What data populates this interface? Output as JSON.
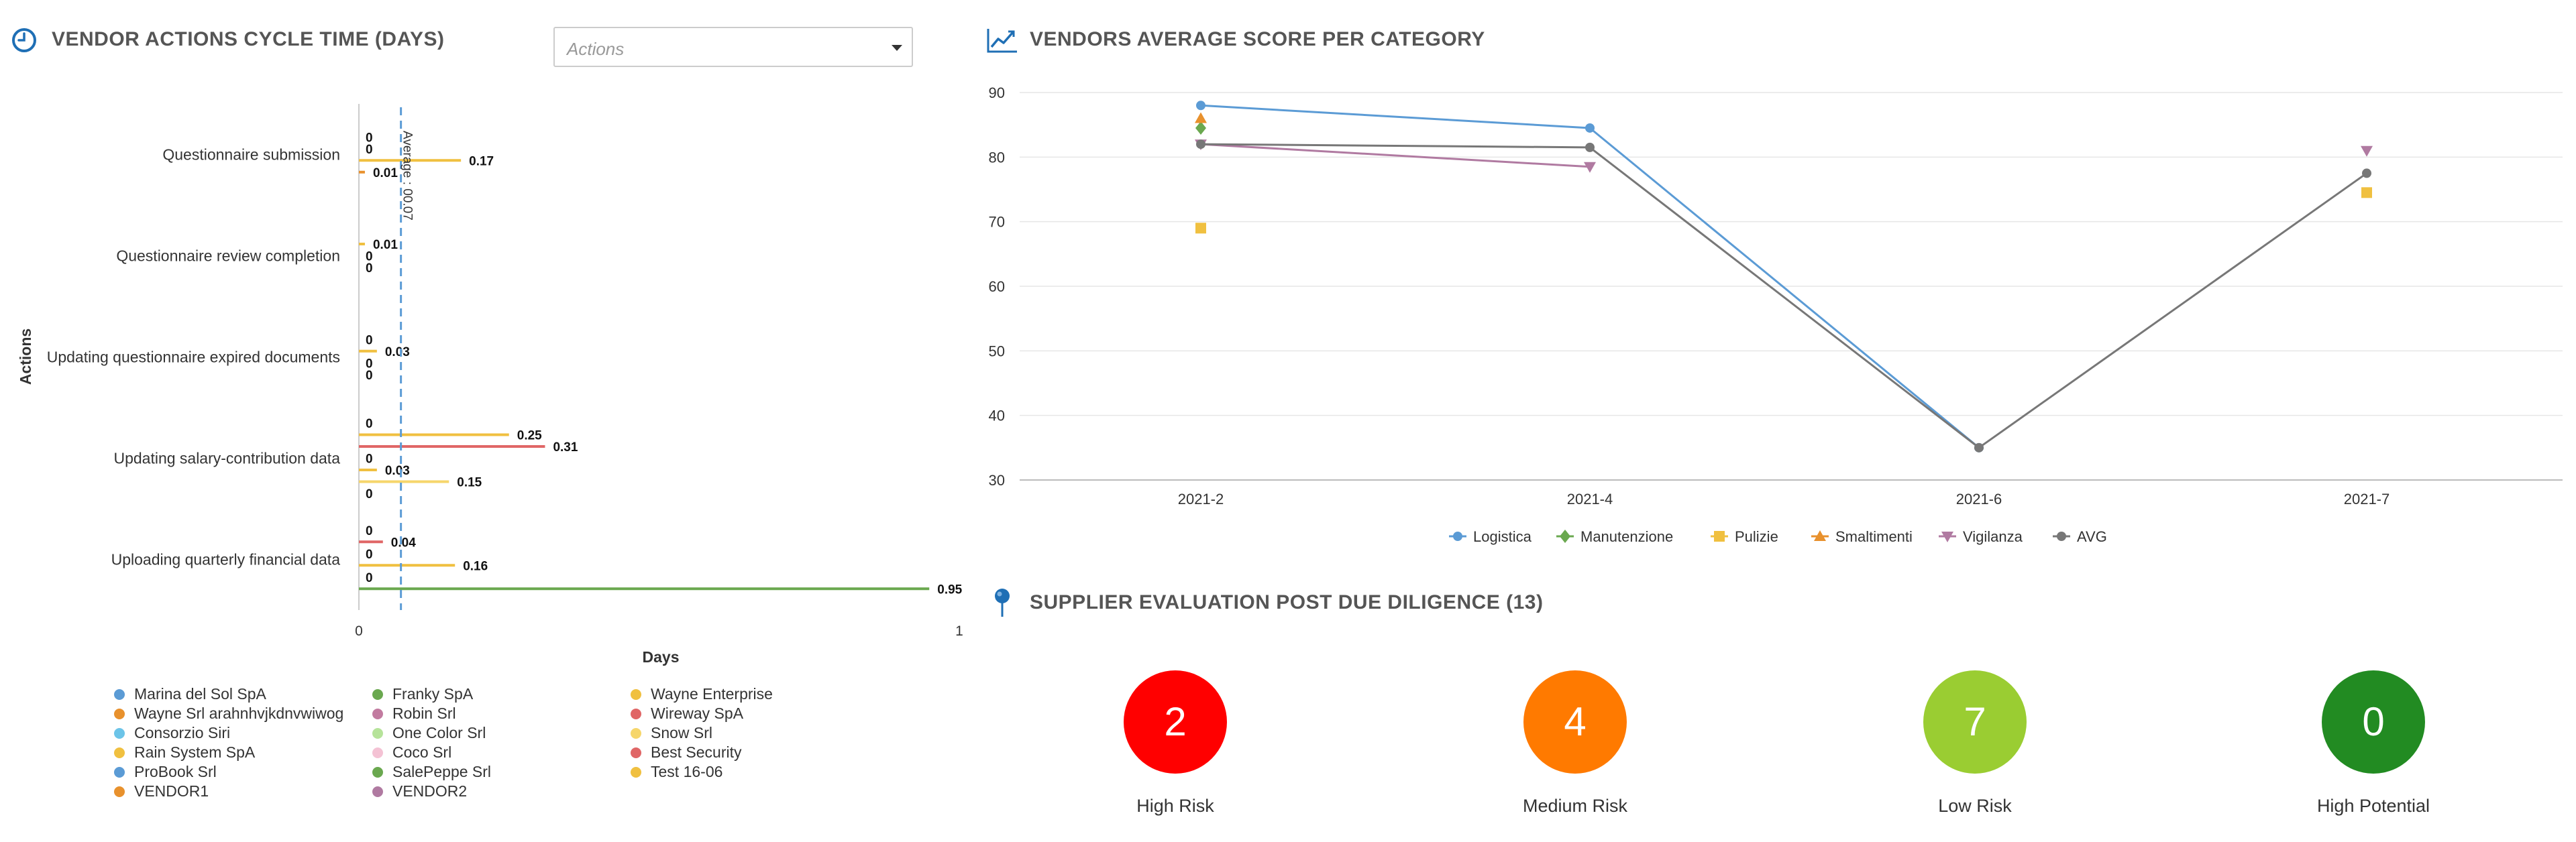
{
  "cycle_panel": {
    "title": "VENDOR ACTIONS CYCLE TIME (DAYS)",
    "dropdown_placeholder": "Actions",
    "y_axis_title": "Actions",
    "x_axis_title": "Days",
    "average_label": "Average : 00.07",
    "legend": [
      {
        "label": "Marina del Sol SpA",
        "color": "#5b9bd5"
      },
      {
        "label": "Wayne Srl arahnhvjkdnvwiwog",
        "color": "#e8912d"
      },
      {
        "label": "Consorzio Siri",
        "color": "#6cc4e8"
      },
      {
        "label": "Rain System SpA",
        "color": "#f0c040"
      },
      {
        "label": "ProBook Srl",
        "color": "#5b9bd5"
      },
      {
        "label": "VENDOR1",
        "color": "#e8912d"
      },
      {
        "label": "Franky SpA",
        "color": "#6aa84f"
      },
      {
        "label": "Robin Srl",
        "color": "#c27ba0"
      },
      {
        "label": "One Color Srl",
        "color": "#b6e39a"
      },
      {
        "label": "Coco Srl",
        "color": "#f4c2d4"
      },
      {
        "label": "SalePeppe Srl",
        "color": "#6aa84f"
      },
      {
        "label": "VENDOR2",
        "color": "#b07aa1"
      },
      {
        "label": "Wayne Enterprise",
        "color": "#f0c040"
      },
      {
        "label": "Wireway SpA",
        "color": "#e06666"
      },
      {
        "label": "Snow Srl",
        "color": "#f6d66b"
      },
      {
        "label": "Best Security",
        "color": "#e06666"
      },
      {
        "label": "Test 16-06",
        "color": "#f0c040"
      }
    ]
  },
  "score_panel": {
    "title": "VENDORS AVERAGE SCORE PER CATEGORY"
  },
  "evaluation_panel": {
    "title": "SUPPLIER EVALUATION POST DUE DILIGENCE (13)",
    "items": [
      {
        "count": "2",
        "label": "High Risk",
        "color": "#ff0000"
      },
      {
        "count": "4",
        "label": "Medium Risk",
        "color": "#ff7a00"
      },
      {
        "count": "7",
        "label": "Low Risk",
        "color": "#9acd32"
      },
      {
        "count": "0",
        "label": "High Potential",
        "color": "#228b22"
      }
    ]
  },
  "chart_data": [
    {
      "type": "bar",
      "orientation": "horizontal",
      "xlabel": "Days",
      "ylabel": "Actions",
      "xlim": [
        0,
        1
      ],
      "x_ticks": [
        "0",
        "1"
      ],
      "average": 0.07,
      "average_label": "Average : 00.07",
      "groups": [
        {
          "category": "Questionnaire submission",
          "bars": [
            {
              "value": 0,
              "label": "0",
              "color": "#5b9bd5"
            },
            {
              "value": 0,
              "label": "0",
              "color": "#e8912d"
            },
            {
              "value": 0.17,
              "label": "0.17",
              "color": "#f0c040"
            },
            {
              "value": 0.01,
              "label": "0.01",
              "color": "#e8912d"
            }
          ]
        },
        {
          "category": "Questionnaire review completion",
          "bars": [
            {
              "value": 0.01,
              "label": "0.01",
              "color": "#f0c040"
            },
            {
              "value": 0,
              "label": "0",
              "color": "#6cc4e8"
            },
            {
              "value": 0,
              "label": "0",
              "color": "#6aa84f"
            }
          ]
        },
        {
          "category": "Updating questionnaire expired documents",
          "bars": [
            {
              "value": 0,
              "label": "0",
              "color": "#f0c040"
            },
            {
              "value": 0.03,
              "label": "0.03",
              "color": "#f0c040"
            },
            {
              "value": 0,
              "label": "0",
              "color": "#5b9bd5"
            },
            {
              "value": 0,
              "label": "0",
              "color": "#6aa84f"
            }
          ]
        },
        {
          "category": "Updating salary-contribution data",
          "bars": [
            {
              "value": 0,
              "label": "0",
              "color": "#5b9bd5"
            },
            {
              "value": 0.25,
              "label": "0.25",
              "color": "#f0c040"
            },
            {
              "value": 0.31,
              "label": "0.31",
              "color": "#e06666"
            },
            {
              "value": 0,
              "label": "0",
              "color": "#5b9bd5"
            },
            {
              "value": 0.03,
              "label": "0.03",
              "color": "#f0c040"
            },
            {
              "value": 0.15,
              "label": "0.15",
              "color": "#f6d66b"
            },
            {
              "value": 0,
              "label": "0",
              "color": "#6aa84f"
            }
          ]
        },
        {
          "category": "Uploading quarterly financial data",
          "bars": [
            {
              "value": 0,
              "label": "0",
              "color": "#5b9bd5"
            },
            {
              "value": 0.04,
              "label": "0.04",
              "color": "#e06666"
            },
            {
              "value": 0,
              "label": "0",
              "color": "#b07aa1"
            },
            {
              "value": 0.16,
              "label": "0.16",
              "color": "#f0c040"
            },
            {
              "value": 0,
              "label": "0",
              "color": "#6aa84f"
            },
            {
              "value": 0.95,
              "label": "0.95",
              "color": "#6aa84f"
            }
          ]
        }
      ]
    },
    {
      "type": "line",
      "categories": [
        "2021-2",
        "2021-4",
        "2021-6",
        "2021-7"
      ],
      "ylim": [
        30,
        90
      ],
      "y_ticks": [
        "90",
        "80",
        "70",
        "60",
        "50",
        "40",
        "30"
      ],
      "grid": true,
      "legend_position": "bottom",
      "series": [
        {
          "name": "Logistica",
          "color": "#5b9bd5",
          "marker": "circle",
          "values": [
            88,
            84.5,
            35,
            null
          ]
        },
        {
          "name": "Manutenzione",
          "color": "#6aa84f",
          "marker": "diamond",
          "values": [
            84.5,
            null,
            null,
            null
          ]
        },
        {
          "name": "Pulizie",
          "color": "#f0c040",
          "marker": "square",
          "values": [
            69,
            null,
            null,
            74.5
          ]
        },
        {
          "name": "Smaltimenti",
          "color": "#e8912d",
          "marker": "triangle",
          "values": [
            86,
            null,
            null,
            null
          ]
        },
        {
          "name": "Vigilanza",
          "color": "#b07aa1",
          "marker": "triangle-down",
          "values": [
            82,
            78.5,
            null,
            81
          ]
        },
        {
          "name": "AVG",
          "color": "#777777",
          "marker": "circle",
          "values": [
            82,
            81.5,
            35,
            77.5
          ]
        }
      ]
    }
  ]
}
